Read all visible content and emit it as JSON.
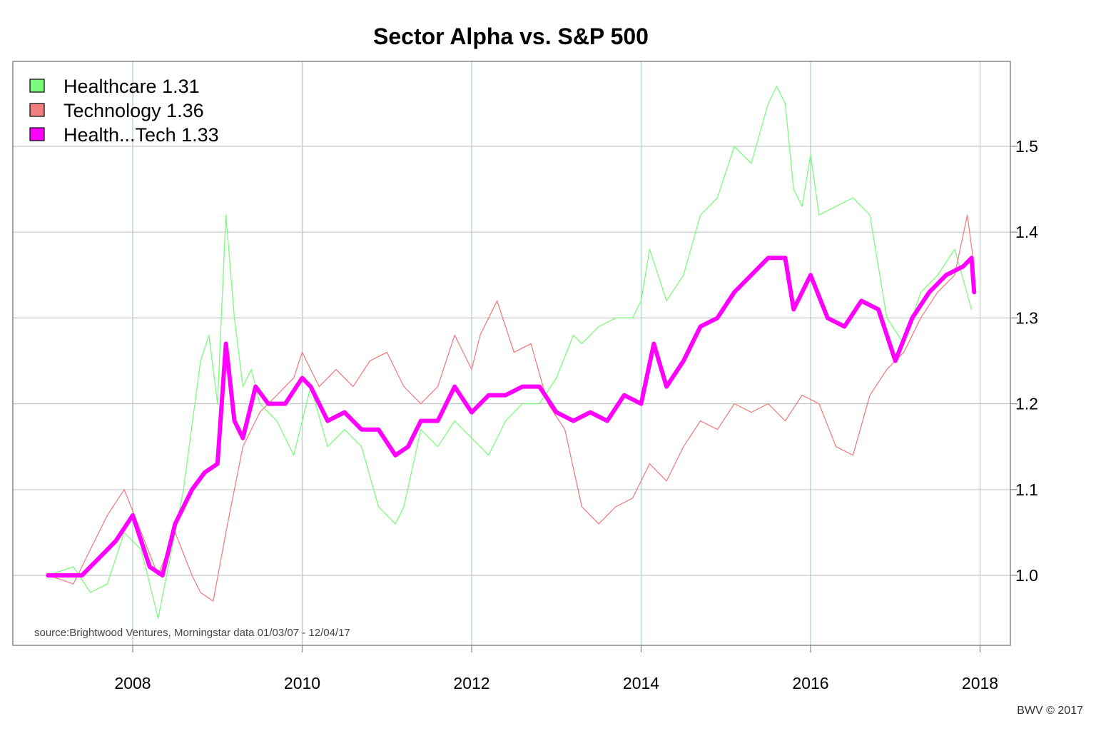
{
  "chart_data": {
    "type": "line",
    "title": "Sector Alpha vs. S&P 500",
    "xlabel": "",
    "ylabel": "",
    "xlim": [
      2007.0,
      2018.2
    ],
    "ylim": [
      0.92,
      1.6
    ],
    "x_ticks": [
      2008,
      2010,
      2012,
      2014,
      2016,
      2018
    ],
    "x_tick_labels": [
      "2008",
      "2010",
      "2012",
      "2014",
      "2016",
      "2018"
    ],
    "y_ticks": [
      1.0,
      1.1,
      1.2,
      1.3,
      1.4,
      1.5
    ],
    "y_tick_labels": [
      "1.0",
      "1.1",
      "1.2",
      "1.3",
      "1.4",
      "1.5"
    ],
    "y_axis_side": "right",
    "grid": true,
    "legend_position": "top-left",
    "source_note": "source:Brightwood Ventures, Morningstar data 01/03/07 - 12/04/17",
    "credit": "BWV © 2017",
    "series": [
      {
        "name": "Healthcare 1.31",
        "color": "#7CFC7C",
        "x": [
          2007.0,
          2007.3,
          2007.5,
          2007.7,
          2007.9,
          2008.1,
          2008.3,
          2008.4,
          2008.6,
          2008.8,
          2008.9,
          2009.0,
          2009.1,
          2009.2,
          2009.3,
          2009.4,
          2009.5,
          2009.7,
          2009.9,
          2010.1,
          2010.3,
          2010.5,
          2010.7,
          2010.9,
          2011.1,
          2011.2,
          2011.4,
          2011.6,
          2011.8,
          2012.0,
          2012.2,
          2012.4,
          2012.6,
          2012.8,
          2013.0,
          2013.2,
          2013.3,
          2013.5,
          2013.7,
          2013.9,
          2014.0,
          2014.1,
          2014.3,
          2014.5,
          2014.7,
          2014.9,
          2015.1,
          2015.3,
          2015.5,
          2015.6,
          2015.7,
          2015.8,
          2015.9,
          2016.0,
          2016.1,
          2016.3,
          2016.5,
          2016.7,
          2016.9,
          2017.1,
          2017.3,
          2017.5,
          2017.7,
          2017.9
        ],
        "y": [
          1.0,
          1.01,
          0.98,
          0.99,
          1.05,
          1.03,
          0.95,
          1.0,
          1.1,
          1.25,
          1.28,
          1.2,
          1.42,
          1.3,
          1.22,
          1.24,
          1.2,
          1.18,
          1.14,
          1.22,
          1.15,
          1.17,
          1.15,
          1.08,
          1.06,
          1.08,
          1.17,
          1.15,
          1.18,
          1.16,
          1.14,
          1.18,
          1.2,
          1.2,
          1.23,
          1.28,
          1.27,
          1.29,
          1.3,
          1.3,
          1.32,
          1.38,
          1.32,
          1.35,
          1.42,
          1.44,
          1.5,
          1.48,
          1.55,
          1.57,
          1.55,
          1.45,
          1.43,
          1.49,
          1.42,
          1.43,
          1.44,
          1.42,
          1.3,
          1.27,
          1.33,
          1.35,
          1.38,
          1.31
        ]
      },
      {
        "name": "Technology 1.36",
        "color": "#F08080",
        "x": [
          2007.0,
          2007.3,
          2007.5,
          2007.7,
          2007.9,
          2008.1,
          2008.3,
          2008.5,
          2008.7,
          2008.8,
          2008.95,
          2009.1,
          2009.3,
          2009.5,
          2009.7,
          2009.9,
          2010.0,
          2010.2,
          2010.4,
          2010.6,
          2010.8,
          2011.0,
          2011.2,
          2011.4,
          2011.6,
          2011.8,
          2012.0,
          2012.1,
          2012.3,
          2012.5,
          2012.7,
          2012.9,
          2013.1,
          2013.3,
          2013.5,
          2013.7,
          2013.9,
          2014.1,
          2014.3,
          2014.5,
          2014.7,
          2014.9,
          2015.1,
          2015.3,
          2015.5,
          2015.7,
          2015.9,
          2016.1,
          2016.3,
          2016.5,
          2016.7,
          2016.9,
          2017.1,
          2017.3,
          2017.5,
          2017.7,
          2017.85,
          2017.93
        ],
        "y": [
          1.0,
          0.99,
          1.03,
          1.07,
          1.1,
          1.05,
          1.0,
          1.05,
          1.0,
          0.98,
          0.97,
          1.05,
          1.15,
          1.19,
          1.21,
          1.23,
          1.26,
          1.22,
          1.24,
          1.22,
          1.25,
          1.26,
          1.22,
          1.2,
          1.22,
          1.28,
          1.24,
          1.28,
          1.32,
          1.26,
          1.27,
          1.2,
          1.17,
          1.08,
          1.06,
          1.08,
          1.09,
          1.13,
          1.11,
          1.15,
          1.18,
          1.17,
          1.2,
          1.19,
          1.2,
          1.18,
          1.21,
          1.2,
          1.15,
          1.14,
          1.21,
          1.24,
          1.26,
          1.3,
          1.33,
          1.35,
          1.42,
          1.36
        ]
      },
      {
        "name": "Health...Tech 1.33",
        "color": "#FF00FF",
        "x": [
          2007.0,
          2007.2,
          2007.4,
          2007.6,
          2007.8,
          2008.0,
          2008.2,
          2008.35,
          2008.5,
          2008.7,
          2008.85,
          2009.0,
          2009.1,
          2009.2,
          2009.3,
          2009.45,
          2009.6,
          2009.8,
          2010.0,
          2010.1,
          2010.3,
          2010.5,
          2010.7,
          2010.9,
          2011.1,
          2011.25,
          2011.4,
          2011.6,
          2011.8,
          2012.0,
          2012.2,
          2012.4,
          2012.6,
          2012.8,
          2013.0,
          2013.2,
          2013.4,
          2013.6,
          2013.8,
          2014.0,
          2014.15,
          2014.3,
          2014.5,
          2014.7,
          2014.9,
          2015.1,
          2015.3,
          2015.5,
          2015.7,
          2015.8,
          2016.0,
          2016.2,
          2016.4,
          2016.6,
          2016.8,
          2017.0,
          2017.2,
          2017.4,
          2017.6,
          2017.8,
          2017.9,
          2017.93
        ],
        "y": [
          1.0,
          1.0,
          1.0,
          1.02,
          1.04,
          1.07,
          1.01,
          1.0,
          1.06,
          1.1,
          1.12,
          1.13,
          1.27,
          1.18,
          1.16,
          1.22,
          1.2,
          1.2,
          1.23,
          1.22,
          1.18,
          1.19,
          1.17,
          1.17,
          1.14,
          1.15,
          1.18,
          1.18,
          1.22,
          1.19,
          1.21,
          1.21,
          1.22,
          1.22,
          1.19,
          1.18,
          1.19,
          1.18,
          1.21,
          1.2,
          1.27,
          1.22,
          1.25,
          1.29,
          1.3,
          1.33,
          1.35,
          1.37,
          1.37,
          1.31,
          1.35,
          1.3,
          1.29,
          1.32,
          1.31,
          1.25,
          1.3,
          1.33,
          1.35,
          1.36,
          1.37,
          1.33
        ]
      }
    ]
  }
}
